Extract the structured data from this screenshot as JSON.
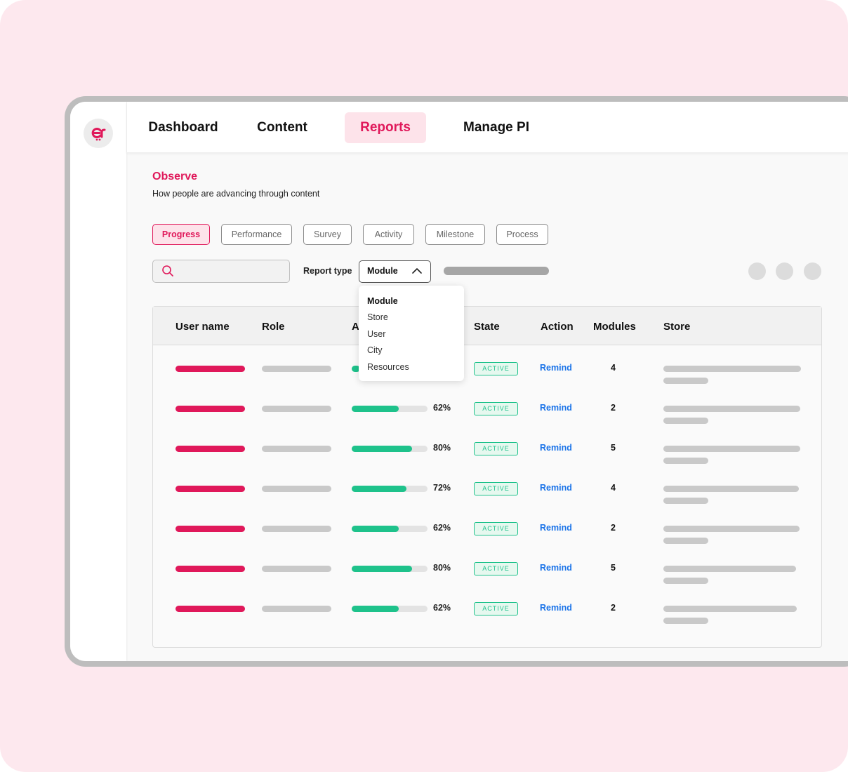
{
  "nav": {
    "items": [
      {
        "label": "Dashboard"
      },
      {
        "label": "Content"
      },
      {
        "label": "Reports"
      },
      {
        "label": "Manage PI"
      }
    ],
    "active": "Reports"
  },
  "page": {
    "title": "Observe",
    "subtitle": "How people are advancing through content"
  },
  "filters": {
    "chips": [
      "Progress",
      "Performance",
      "Survey",
      "Activity",
      "Milestone",
      "Process"
    ],
    "active": "Progress"
  },
  "toolbar": {
    "search_placeholder": "",
    "report_type_label": "Report type",
    "report_type_value": "Module",
    "dropdown_options": [
      "Module",
      "Store",
      "User",
      "City",
      "Resources"
    ]
  },
  "table": {
    "headers": {
      "user_name": "User name",
      "role": "Role",
      "progress": "A",
      "state": "State",
      "action": "Action",
      "modules": "Modules",
      "store": "Store"
    },
    "rows": [
      {
        "progress": null,
        "percent": "",
        "state": "ACTIVE",
        "action": "Remind",
        "modules": "4"
      },
      {
        "progress": 0.62,
        "percent": "62%",
        "state": "ACTIVE",
        "action": "Remind",
        "modules": "2"
      },
      {
        "progress": 0.8,
        "percent": "80%",
        "state": "ACTIVE",
        "action": "Remind",
        "modules": "5"
      },
      {
        "progress": 0.72,
        "percent": "72%",
        "state": "ACTIVE",
        "action": "Remind",
        "modules": "4"
      },
      {
        "progress": 0.62,
        "percent": "62%",
        "state": "ACTIVE",
        "action": "Remind",
        "modules": "2"
      },
      {
        "progress": 0.8,
        "percent": "80%",
        "state": "ACTIVE",
        "action": "Remind",
        "modules": "5"
      },
      {
        "progress": 0.62,
        "percent": "62%",
        "state": "ACTIVE",
        "action": "Remind",
        "modules": "2"
      }
    ]
  },
  "colors": {
    "brand": "#e0185a",
    "success": "#1ec28b",
    "link": "#1a73e8"
  }
}
